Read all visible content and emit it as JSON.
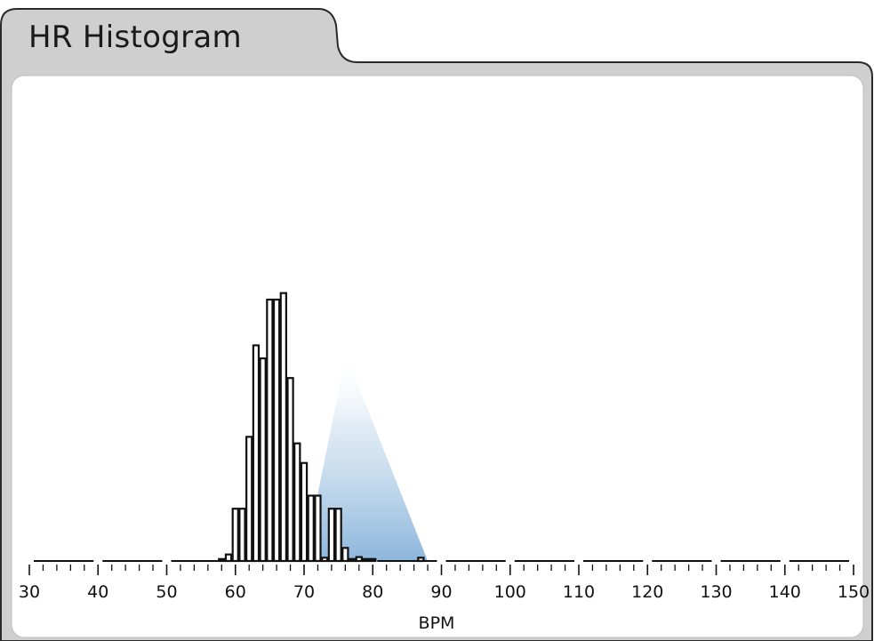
{
  "panel": {
    "tab_title": "HR Histogram"
  },
  "chart_data": {
    "type": "bar",
    "title": "HR Histogram",
    "xlabel": "BPM",
    "ylabel": "",
    "xlim": [
      30,
      150
    ],
    "x_ticks": [
      30,
      40,
      50,
      60,
      70,
      80,
      90,
      100,
      110,
      120,
      130,
      140,
      150
    ],
    "bin_width": 1,
    "bins": [
      {
        "x": 58,
        "v": 0.3
      },
      {
        "x": 59,
        "v": 1
      },
      {
        "x": 60,
        "v": 8
      },
      {
        "x": 61,
        "v": 8
      },
      {
        "x": 62,
        "v": 19
      },
      {
        "x": 63,
        "v": 33
      },
      {
        "x": 64,
        "v": 31
      },
      {
        "x": 65,
        "v": 40
      },
      {
        "x": 66,
        "v": 40
      },
      {
        "x": 67,
        "v": 41
      },
      {
        "x": 68,
        "v": 28
      },
      {
        "x": 69,
        "v": 18
      },
      {
        "x": 70,
        "v": 15
      },
      {
        "x": 71,
        "v": 10
      },
      {
        "x": 72,
        "v": 10
      },
      {
        "x": 73,
        "v": 0.5
      },
      {
        "x": 74,
        "v": 8
      },
      {
        "x": 75,
        "v": 8
      },
      {
        "x": 76,
        "v": 2
      },
      {
        "x": 77,
        "v": 0.3
      },
      {
        "x": 78,
        "v": 0.6
      },
      {
        "x": 79,
        "v": 0.3
      },
      {
        "x": 80,
        "v": 0.3
      },
      {
        "x": 87,
        "v": 0.5
      }
    ],
    "ylim": [
      0,
      60
    ],
    "grid": false,
    "highlight_range": [
      70,
      88
    ],
    "colors": {
      "bar_fill": "#ffffff",
      "bar_stroke": "#111111",
      "highlight": "#9ec2e0",
      "panel_bg": "#cfcfcf",
      "frame_stroke": "#2a2a2a"
    }
  }
}
